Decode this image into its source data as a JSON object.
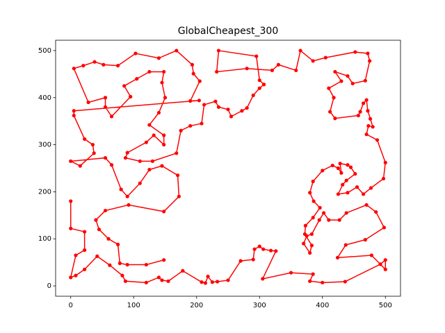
{
  "chart_data": {
    "type": "line",
    "title": "GlobalCheapest_300",
    "color": "#ff0000",
    "markers": true,
    "xlim": [
      -24,
      524
    ],
    "ylim": [
      -22,
      522
    ],
    "xticks": [
      0,
      100,
      200,
      300,
      400,
      500
    ],
    "yticks": [
      0,
      100,
      200,
      300,
      400,
      500
    ],
    "x": [
      0,
      0,
      22,
      22,
      8,
      0,
      8,
      22,
      42,
      62,
      82,
      87,
      120,
      140,
      145,
      155,
      178,
      208,
      214,
      218,
      225,
      233,
      250,
      270,
      290,
      292,
      300,
      306,
      318,
      326,
      305,
      350,
      385,
      380,
      400,
      436,
      492,
      500,
      500,
      478,
      424,
      437,
      468,
      498,
      485,
      470,
      438,
      427,
      410,
      402,
      395,
      383,
      375,
      370,
      380,
      383,
      372,
      373,
      385,
      396,
      386,
      380,
      385,
      400,
      416,
      425,
      430,
      428,
      440,
      445,
      452,
      438,
      432,
      425,
      440,
      455,
      465,
      477,
      497,
      500,
      487,
      470,
      473,
      480,
      476,
      472,
      470,
      465,
      460,
      457,
      420,
      412,
      418,
      410,
      430,
      420,
      440,
      448,
      468,
      475,
      472,
      452,
      405,
      385,
      365,
      358,
      330,
      320,
      280,
      232,
      235,
      295,
      300,
      307,
      300,
      290,
      280,
      272,
      255,
      250,
      235,
      230,
      212,
      208,
      190,
      175,
      168,
      130,
      110,
      87,
      90,
      120,
      132,
      148,
      148,
      125,
      140,
      150,
      145,
      148,
      125,
      105,
      85,
      95,
      65,
      55,
      55,
      28,
      5,
      20,
      38,
      52,
      75,
      103,
      140,
      168,
      193,
      195,
      205,
      190,
      204,
      5,
      5,
      22,
      35,
      37,
      15,
      0,
      55,
      65,
      80,
      90,
      110,
      125,
      145,
      170,
      172,
      148,
      92,
      55,
      40,
      45,
      60,
      75,
      78,
      90,
      120,
      148
    ],
    "values": [
      180,
      122,
      115,
      76,
      65,
      18,
      22,
      35,
      63,
      44,
      22,
      10,
      7,
      18,
      12,
      10,
      32,
      8,
      6,
      20,
      8,
      9,
      12,
      53,
      56,
      78,
      84,
      78,
      75,
      74,
      15,
      28,
      25,
      10,
      7,
      9,
      46,
      55,
      35,
      65,
      60,
      87,
      98,
      124,
      157,
      172,
      155,
      140,
      140,
      155,
      140,
      110,
      106,
      90,
      70,
      86,
      110,
      128,
      145,
      166,
      180,
      198,
      222,
      245,
      256,
      250,
      240,
      260,
      257,
      252,
      238,
      224,
      215,
      195,
      198,
      210,
      195,
      208,
      228,
      262,
      310,
      322,
      340,
      338,
      355,
      372,
      395,
      388,
      370,
      362,
      356,
      370,
      400,
      420,
      435,
      455,
      446,
      430,
      436,
      478,
      494,
      497,
      485,
      478,
      500,
      458,
      470,
      458,
      462,
      455,
      500,
      488,
      437,
      428,
      420,
      405,
      378,
      372,
      360,
      375,
      380,
      392,
      385,
      345,
      340,
      330,
      282,
      265,
      265,
      272,
      283,
      305,
      320,
      300,
      320,
      342,
      368,
      400,
      432,
      455,
      455,
      440,
      425,
      402,
      360,
      380,
      400,
      390,
      462,
      468,
      476,
      470,
      468,
      494,
      484,
      500,
      470,
      451,
      435,
      393,
      394,
      372,
      362,
      312,
      300,
      282,
      255,
      265,
      272,
      257,
      205,
      190,
      218,
      247,
      255,
      235,
      190,
      158,
      172,
      160,
      140,
      120,
      100,
      88,
      48,
      45,
      45,
      55
    ]
  }
}
